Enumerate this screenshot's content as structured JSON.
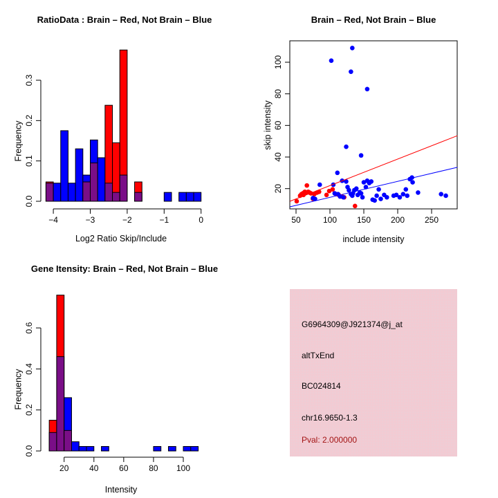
{
  "chart_data": [
    {
      "type": "bar",
      "subtype": "overlaid-histogram",
      "title": "RatioData : Brain – Red, Not Brain – Blue",
      "xlabel": "Log2 Ratio Skip/Include",
      "ylabel": "Frequency",
      "bin_start": -4.2,
      "bin_width": 0.2,
      "series": [
        {
          "name": "Brain",
          "color": "#FF0000",
          "values": [
            0.048,
            0,
            0,
            0,
            0,
            0.048,
            0.095,
            0,
            0.238,
            0.145,
            0.375,
            0,
            0.048,
            0,
            0,
            0,
            0,
            0,
            0,
            0,
            0
          ]
        },
        {
          "name": "Not Brain",
          "color": "#0000FF",
          "values": [
            0.045,
            0.045,
            0.175,
            0.045,
            0.13,
            0.065,
            0.152,
            0.108,
            0.045,
            0.022,
            0.065,
            0,
            0.022,
            0,
            0,
            0,
            0.022,
            0,
            0.022,
            0.022,
            0.022
          ]
        }
      ],
      "overlap_color": "#7A0E87",
      "x_tick_values": [
        -4,
        -3,
        -2,
        -1,
        0
      ],
      "x_tick_labels": [
        "−4",
        "−3",
        "−2",
        "−1",
        "0"
      ],
      "y_tick_values": [
        0,
        0.1,
        0.2,
        0.3
      ],
      "y_tick_labels": [
        "0.0",
        "0.1",
        "0.2",
        "0.3"
      ],
      "xlim": [
        -4.3,
        0.1
      ],
      "ylim": [
        0,
        0.38
      ],
      "grid": false
    },
    {
      "type": "scatter",
      "title": "Brain – Red, Not Brain – Blue",
      "xlabel": "include intensity",
      "ylabel": "skip intensity",
      "x_tick_values": [
        50,
        100,
        150,
        200,
        250
      ],
      "x_tick_labels": [
        "50",
        "100",
        "150",
        "200",
        "250"
      ],
      "y_tick_values": [
        20,
        40,
        60,
        80,
        100
      ],
      "y_tick_labels": [
        "20",
        "40",
        "60",
        "80",
        "100"
      ],
      "xlim": [
        41,
        288
      ],
      "ylim": [
        7,
        114
      ],
      "grid": false,
      "series": [
        {
          "name": "Brain",
          "color": "#FF0000",
          "points": [
            [
              51,
              12
            ],
            [
              56,
              15.5
            ],
            [
              58,
              16.5
            ],
            [
              60,
              17
            ],
            [
              61,
              16
            ],
            [
              62,
              17.5
            ],
            [
              63,
              18
            ],
            [
              65,
              17.5
            ],
            [
              66,
              22
            ],
            [
              68,
              18
            ],
            [
              70,
              17.5
            ],
            [
              72,
              17
            ],
            [
              75,
              13.5
            ],
            [
              77,
              16.5
            ],
            [
              81,
              17.5
            ],
            [
              84,
              18
            ],
            [
              95,
              16
            ],
            [
              99,
              18.5
            ],
            [
              104,
              19.5
            ],
            [
              109,
              16.5
            ],
            [
              113,
              16
            ],
            [
              118,
              15
            ],
            [
              121,
              14.5
            ],
            [
              137,
              9
            ]
          ]
        },
        {
          "name": "Not Brain",
          "color": "#0000FF",
          "points": [
            [
              75,
              14
            ],
            [
              78,
              13.5
            ],
            [
              85,
              22.5
            ],
            [
              102,
              101
            ],
            [
              105,
              22.5
            ],
            [
              107,
              17
            ],
            [
              111,
              30
            ],
            [
              112,
              16.5
            ],
            [
              115,
              15
            ],
            [
              118,
              25
            ],
            [
              120,
              14.5
            ],
            [
              124,
              46.5
            ],
            [
              124,
              24.5
            ],
            [
              126,
              21
            ],
            [
              128,
              19
            ],
            [
              131,
              94
            ],
            [
              131,
              16.5
            ],
            [
              133,
              109
            ],
            [
              133,
              15.5
            ],
            [
              134,
              17
            ],
            [
              136,
              19
            ],
            [
              139,
              20
            ],
            [
              141,
              16
            ],
            [
              146,
              41
            ],
            [
              144,
              17.5
            ],
            [
              146,
              17
            ],
            [
              148,
              14.5
            ],
            [
              150,
              24
            ],
            [
              155,
              83
            ],
            [
              153,
              21
            ],
            [
              155,
              25
            ],
            [
              158,
              23.5
            ],
            [
              161,
              24.5
            ],
            [
              163,
              13
            ],
            [
              166,
              12.5
            ],
            [
              169,
              15.5
            ],
            [
              172,
              19.5
            ],
            [
              175,
              13.5
            ],
            [
              180,
              16
            ],
            [
              184,
              14.5
            ],
            [
              194,
              15.5
            ],
            [
              198,
              16
            ],
            [
              203,
              14.5
            ],
            [
              208,
              16.5
            ],
            [
              212,
              19.5
            ],
            [
              214,
              15.5
            ],
            [
              218,
              26
            ],
            [
              221,
              27
            ],
            [
              222,
              24
            ],
            [
              230,
              17.5
            ],
            [
              264,
              16.5
            ],
            [
              271,
              15.5
            ]
          ]
        }
      ],
      "fit_lines": [
        {
          "name": "brain-fit",
          "color": "#FF0000",
          "from": [
            41,
            12
          ],
          "to": [
            288,
            53.5
          ]
        },
        {
          "name": "not-brain-fit",
          "color": "#0000FF",
          "from": [
            41,
            8.5
          ],
          "to": [
            288,
            33.5
          ]
        }
      ]
    },
    {
      "type": "bar",
      "subtype": "overlaid-histogram",
      "title": "Gene Itensity: Brain – Red, Not Brain – Blue",
      "xlabel": "Intensity",
      "ylabel": "Frequency",
      "bin_start": 10,
      "bin_width": 5,
      "series": [
        {
          "name": "Brain",
          "color": "#FF0000",
          "values": [
            0.15,
            0.76,
            0.1,
            0,
            0,
            0,
            0,
            0,
            0,
            0,
            0,
            0,
            0,
            0,
            0,
            0,
            0,
            0,
            0,
            0
          ]
        },
        {
          "name": "Not Brain",
          "color": "#0000FF",
          "values": [
            0.09,
            0.46,
            0.26,
            0.045,
            0.022,
            0.022,
            0,
            0.022,
            0,
            0,
            0,
            0,
            0,
            0,
            0.022,
            0,
            0.022,
            0,
            0.022,
            0.022
          ]
        }
      ],
      "overlap_color": "#7A0E87",
      "x_tick_values": [
        20,
        40,
        60,
        80,
        100
      ],
      "x_tick_labels": [
        "20",
        "40",
        "60",
        "80",
        "100"
      ],
      "y_tick_values": [
        0,
        0.2,
        0.4,
        0.6
      ],
      "y_tick_labels": [
        "0.0",
        "0.2",
        "0.4",
        "0.6"
      ],
      "xlim": [
        7,
        113
      ],
      "ylim": [
        0,
        0.78
      ],
      "grid": false
    },
    {
      "type": "table",
      "subtype": "info-box",
      "background": "#F2CBD3",
      "lines": [
        "G6964309@J921374@j_at",
        "altTxEnd",
        "BC024814",
        "chr16.9650-1.3"
      ],
      "pval": "Pval: 2.000000",
      "pval_color": "#A31414"
    }
  ]
}
